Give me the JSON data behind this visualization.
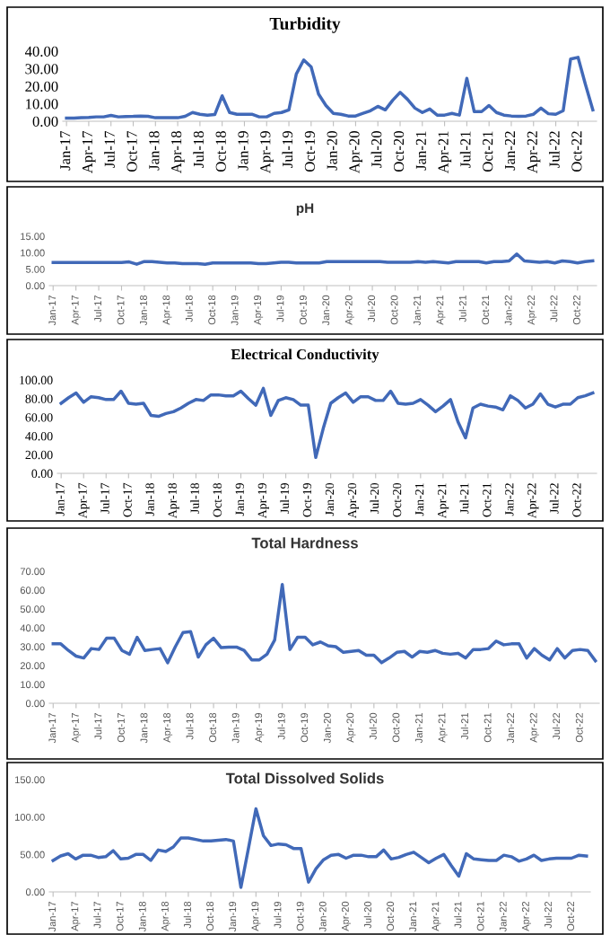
{
  "chart_data": [
    {
      "type": "line",
      "title": "Turbidity",
      "categories": [
        "Jan-17",
        null,
        null,
        "Apr-17",
        null,
        null,
        "Jul-17",
        null,
        null,
        "Oct-17",
        null,
        null,
        "Jan-18",
        null,
        null,
        "Apr-18",
        null,
        null,
        "Jul-18",
        null,
        null,
        "Oct-18",
        null,
        null,
        "Jan-19",
        null,
        null,
        "Apr-19",
        null,
        null,
        "Jul-19",
        null,
        null,
        "Oct-19",
        null,
        null,
        "Jan-20",
        null,
        null,
        "Apr-20",
        null,
        null,
        "Jul-20",
        null,
        null,
        "Oct-20",
        null,
        null,
        "Jan-21",
        null,
        null,
        "Apr-21",
        null,
        null,
        "Jul-21",
        null,
        null,
        "Oct-21",
        null,
        null,
        "Jan-22",
        null,
        null,
        "Apr-22",
        null,
        null,
        "Jul-22",
        null,
        null,
        "Oct-22",
        null,
        null
      ],
      "series": [
        {
          "color": "#4169b8",
          "values": [
            1.8,
            1.8,
            2.0,
            2.2,
            2.5,
            2.5,
            3.3,
            2.5,
            2.7,
            2.8,
            3.0,
            2.8,
            2.0,
            2.0,
            2.0,
            2.0,
            2.8,
            5.0,
            4.0,
            3.5,
            3.8,
            14.5,
            5.0,
            4.0,
            4.0,
            4.0,
            2.5,
            2.5,
            4.5,
            5.0,
            6.5,
            27,
            35,
            31,
            15.5,
            9,
            4.5,
            4.0,
            3.0,
            3.0,
            4.5,
            6.0,
            8.5,
            6.5,
            12,
            16.5,
            12.5,
            7.5,
            5,
            7,
            3.5,
            3.5,
            4.5,
            3.5,
            24.5,
            5.5,
            5.5,
            9,
            5,
            3.5,
            3.0,
            2.8,
            3.0,
            4.0,
            7.5,
            4.3,
            4.0,
            6.0,
            35.5,
            36.5,
            21,
            6.5
          ]
        }
      ],
      "ylim": [
        0,
        40
      ],
      "yticks": [
        {
          "value": 0,
          "label": "0.00"
        },
        {
          "value": 10,
          "label": "10.00"
        },
        {
          "value": 20,
          "label": "20.00"
        },
        {
          "value": 30,
          "label": "30.00"
        },
        {
          "value": 40,
          "label": "40.00"
        }
      ],
      "grid": false,
      "legend": false
    },
    {
      "type": "line",
      "title": "pH",
      "categories": [
        "Jan-17",
        null,
        null,
        "Apr-17",
        null,
        null,
        "Jul-17",
        null,
        null,
        "Oct-17",
        null,
        null,
        "Jan-18",
        null,
        null,
        "Apr-18",
        null,
        null,
        "Jul-18",
        null,
        null,
        "Oct-18",
        null,
        null,
        "Jan-19",
        null,
        null,
        "Apr-19",
        null,
        null,
        "Jul-19",
        null,
        null,
        "Oct-19",
        null,
        null,
        "Jan-20",
        null,
        null,
        "Apr-20",
        null,
        null,
        "Jul-20",
        null,
        null,
        "Oct-20",
        null,
        null,
        "Jan-21",
        null,
        null,
        "Apr-21",
        null,
        null,
        "Jul-21",
        null,
        null,
        "Oct-21",
        null,
        null,
        "Jan-22",
        null,
        null,
        "Apr-22",
        null,
        null,
        "Jul-22",
        null,
        null,
        "Oct-22",
        null,
        null
      ],
      "series": [
        {
          "color": "#4169b8",
          "values": [
            7.0,
            7.0,
            7.0,
            7.0,
            7.0,
            7.0,
            7.0,
            7.0,
            7.0,
            7.0,
            7.2,
            6.5,
            7.3,
            7.3,
            7.1,
            6.9,
            6.9,
            6.7,
            6.7,
            6.7,
            6.5,
            6.9,
            6.9,
            6.9,
            6.9,
            6.9,
            6.9,
            6.7,
            6.7,
            6.9,
            7.1,
            7.1,
            6.9,
            6.9,
            6.9,
            6.9,
            7.3,
            7.3,
            7.3,
            7.3,
            7.3,
            7.3,
            7.3,
            7.3,
            7.1,
            7.1,
            7.1,
            7.1,
            7.3,
            7.1,
            7.3,
            7.1,
            6.9,
            7.3,
            7.3,
            7.3,
            7.3,
            6.9,
            7.3,
            7.3,
            7.5,
            9.6,
            7.5,
            7.3,
            7.1,
            7.3,
            6.9,
            7.5,
            7.3,
            6.9,
            7.3,
            7.5
          ]
        }
      ],
      "ylim": [
        0,
        15
      ],
      "yticks": [
        {
          "value": 0,
          "label": "0.00"
        },
        {
          "value": 5,
          "label": "5.00"
        },
        {
          "value": 10,
          "label": "10.00"
        },
        {
          "value": 15,
          "label": "15.00"
        }
      ],
      "grid": false,
      "legend": false
    },
    {
      "type": "line",
      "title": "Electrical Conductivity",
      "categories": [
        "Jan-17",
        null,
        null,
        "Apr-17",
        null,
        null,
        "Jul-17",
        null,
        null,
        "Oct-17",
        null,
        null,
        "Jan-18",
        null,
        null,
        "Apr-18",
        null,
        null,
        "Jul-18",
        null,
        null,
        "Oct-18",
        null,
        null,
        "Jan-19",
        null,
        null,
        "Apr-19",
        null,
        null,
        "Jul-19",
        null,
        null,
        "Oct-19",
        null,
        null,
        "Jan-20",
        null,
        null,
        "Apr-20",
        null,
        null,
        "Jul-20",
        null,
        null,
        "Oct-20",
        null,
        null,
        "Jan-21",
        null,
        null,
        "Apr-21",
        null,
        null,
        "Jul-21",
        null,
        null,
        "Oct-21",
        null,
        null,
        "Jan-22",
        null,
        null,
        "Apr-22",
        null,
        null,
        "Jul-22",
        null,
        null,
        "Oct-22",
        null,
        null
      ],
      "series": [
        {
          "color": "#4169b8",
          "values": [
            75,
            81,
            86,
            76,
            82,
            81,
            79,
            79,
            88,
            75,
            74,
            75,
            62,
            61,
            64,
            66,
            70,
            75,
            79,
            78,
            84,
            84,
            83,
            83,
            88,
            80,
            73,
            91,
            62,
            78,
            81,
            79,
            73,
            73,
            17,
            48,
            75,
            81,
            86,
            76,
            82,
            82,
            78,
            78,
            88,
            75,
            74,
            75,
            79,
            73,
            66,
            72,
            79,
            55,
            38,
            70,
            74,
            72,
            71,
            68,
            83,
            78,
            70,
            74,
            85,
            74,
            71,
            74,
            74,
            81,
            83,
            86
          ]
        }
      ],
      "ylim": [
        0,
        100
      ],
      "yticks": [
        {
          "value": 0,
          "label": "0.00"
        },
        {
          "value": 20,
          "label": "20.00"
        },
        {
          "value": 40,
          "label": "40.00"
        },
        {
          "value": 60,
          "label": "60.00"
        },
        {
          "value": 80,
          "label": "80.00"
        },
        {
          "value": 100,
          "label": "100.00"
        }
      ],
      "grid": false,
      "legend": false
    },
    {
      "type": "line",
      "title": "Total Hardness",
      "categories": [
        "Jan-17",
        null,
        null,
        "Apr-17",
        null,
        null,
        "Jul-17",
        null,
        null,
        "Oct-17",
        null,
        null,
        "Jan-18",
        null,
        null,
        "Apr-18",
        null,
        null,
        "Jul-18",
        null,
        null,
        "Oct-18",
        null,
        null,
        "Jan-19",
        null,
        null,
        "Apr-19",
        null,
        null,
        "Jul-19",
        null,
        null,
        "Oct-19",
        null,
        null,
        "Jan-20",
        null,
        null,
        "Apr-20",
        null,
        null,
        "Jul-20",
        null,
        null,
        "Oct-20",
        null,
        null,
        "Jan-21",
        null,
        null,
        "Apr-21",
        null,
        null,
        "Jul-21",
        null,
        null,
        "Oct-21",
        null,
        null,
        "Jan-22",
        null,
        null,
        "Apr-22",
        null,
        null,
        "Jul-22",
        null,
        null,
        "Oct-22",
        null,
        null
      ],
      "series": [
        {
          "color": "#4169b8",
          "values": [
            31.5,
            31.5,
            28,
            25,
            24,
            29,
            28.5,
            34.5,
            34.5,
            28,
            26,
            35,
            28,
            28.5,
            29,
            21.5,
            30,
            37.5,
            38,
            24.5,
            31,
            34.5,
            29.5,
            29.8,
            29.8,
            28,
            23,
            23,
            26,
            33.5,
            63,
            28.5,
            35,
            35,
            31,
            32.5,
            30.5,
            30,
            27,
            27.5,
            28,
            25.5,
            25.5,
            21.5,
            24,
            27,
            27.5,
            24.5,
            27.5,
            27,
            28,
            26.5,
            26,
            26.5,
            24,
            28.5,
            28.5,
            29,
            33,
            31,
            31.5,
            31.5,
            24,
            29,
            25.5,
            23,
            29,
            24,
            28,
            28.5,
            28,
            22.5
          ]
        }
      ],
      "ylim": [
        0,
        70
      ],
      "yticks": [
        {
          "value": 0,
          "label": "0.00"
        },
        {
          "value": 10,
          "label": "10.00"
        },
        {
          "value": 20,
          "label": "20.00"
        },
        {
          "value": 30,
          "label": "30.00"
        },
        {
          "value": 40,
          "label": "40.00"
        },
        {
          "value": 50,
          "label": "50.00"
        },
        {
          "value": 60,
          "label": "60.00"
        },
        {
          "value": 70,
          "label": "70.00"
        }
      ],
      "grid": false,
      "legend": false
    },
    {
      "type": "line",
      "title": "Total Dissolved Solids",
      "categories": [
        "Jan-17",
        null,
        null,
        "Apr-17",
        null,
        null,
        "Jul-17",
        null,
        null,
        "Oct-17",
        null,
        null,
        "Jan-18",
        null,
        null,
        "Apr-18",
        null,
        null,
        "Jul-18",
        null,
        null,
        "Oct-18",
        null,
        null,
        "Jan-19",
        null,
        null,
        "Apr-19",
        null,
        null,
        "Jul-19",
        null,
        null,
        "Oct-19",
        null,
        null,
        "Jan-20",
        null,
        null,
        "Apr-20",
        null,
        null,
        "Jul-20",
        null,
        null,
        "Oct-20",
        null,
        null,
        "Jan-21",
        null,
        null,
        "Apr-21",
        null,
        null,
        "Jul-21",
        null,
        null,
        "Oct-21",
        null,
        null,
        "Jan-22",
        null,
        null,
        "Apr-22",
        null,
        null,
        "Jul-22",
        null,
        null,
        "Oct-22",
        null,
        null
      ],
      "series": [
        {
          "color": "#4169b8",
          "values": [
            42,
            48,
            51,
            44,
            49,
            49,
            46,
            47,
            55,
            44,
            45,
            50,
            50,
            42,
            56,
            54,
            60,
            72,
            72,
            70,
            68,
            68,
            69,
            70,
            68,
            6,
            58,
            111,
            75,
            62,
            64,
            63,
            58,
            58,
            13,
            31,
            43,
            49,
            50,
            45,
            49,
            49,
            47,
            47,
            56,
            44,
            46,
            50,
            53,
            46,
            39,
            45,
            50,
            35,
            21,
            51,
            44,
            43,
            42,
            42,
            49,
            47,
            41,
            44,
            49,
            42,
            44,
            45,
            45,
            45,
            49,
            48
          ]
        }
      ],
      "ylim": [
        0,
        150
      ],
      "yticks": [
        {
          "value": 0,
          "label": "0.00"
        },
        {
          "value": 50,
          "label": "50.00"
        },
        {
          "value": 100,
          "label": "100.00"
        },
        {
          "value": 150,
          "label": "150.00"
        }
      ],
      "grid": false,
      "legend": false
    }
  ]
}
